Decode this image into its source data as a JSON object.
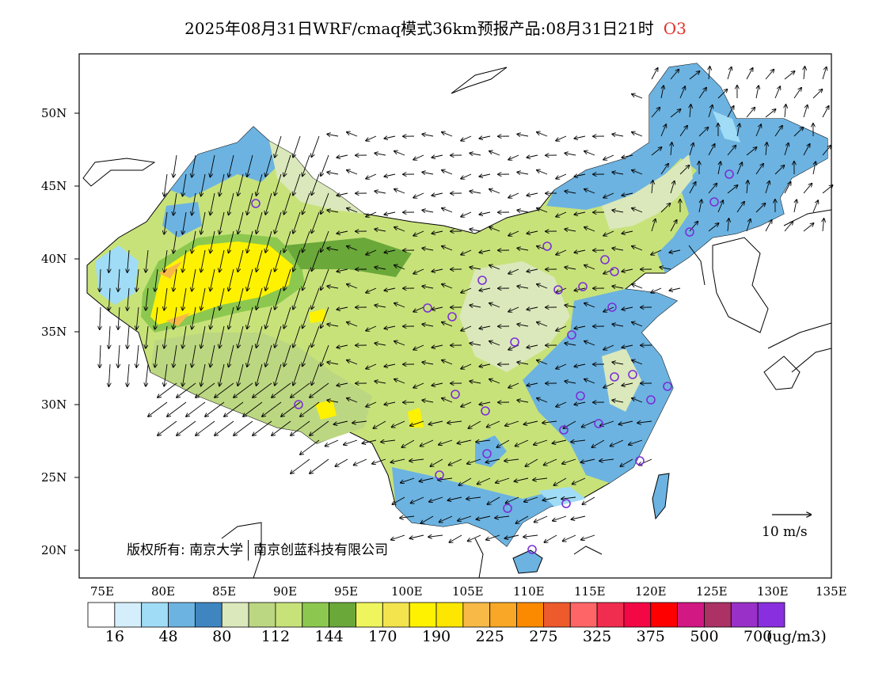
{
  "title": {
    "text": "2025年08月31日WRF/cmaq模式36km预报产品:08月31日21时",
    "species": "O3",
    "species_color": "#e0332b"
  },
  "axes": {
    "lon_labels": [
      "75E",
      "80E",
      "85E",
      "90E",
      "95E",
      "100E",
      "105E",
      "110E",
      "115E",
      "120E",
      "125E",
      "130E",
      "135E"
    ],
    "lat_labels": [
      "50N",
      "45N",
      "40N",
      "35N",
      "30N",
      "25N",
      "20N"
    ]
  },
  "copyright": {
    "part1": "版权所有: 南京大学",
    "part2": "南京创蓝科技有限公司"
  },
  "wind_scale": {
    "label": "10 m/s",
    "icon": "arrow-right-icon"
  },
  "colorbar": {
    "colors": [
      "#ffffff",
      "#d4effb",
      "#a0dcf6",
      "#6cb3e1",
      "#3f86c0",
      "#dbe8bb",
      "#bcd781",
      "#c8e27a",
      "#8cc84f",
      "#6aa83a",
      "#eff65d",
      "#f3e44e",
      "#fff200",
      "#fde600",
      "#f8b947",
      "#f8a826",
      "#fc8a00",
      "#ed5a2c",
      "#fd6567",
      "#f12d4f",
      "#f30744",
      "#fe0000",
      "#d21883",
      "#ac3165",
      "#9930c8",
      "#8a2fdf"
    ],
    "labels": [
      "16",
      "48",
      "80",
      "112",
      "144",
      "170",
      "190",
      "225",
      "275",
      "325",
      "375",
      "500",
      "700"
    ],
    "unit": "(ug/m3)"
  },
  "map_colors": {
    "blue": "#6cb3e1",
    "lightblue": "#a0dcf6",
    "palegreen": "#dbe8bb",
    "green": "#bcd781",
    "midgreen": "#8cc84f",
    "darkgreen": "#6aa83a",
    "yellow": "#fff200",
    "orange": "#f8b947",
    "station": "#7b2fd6"
  }
}
